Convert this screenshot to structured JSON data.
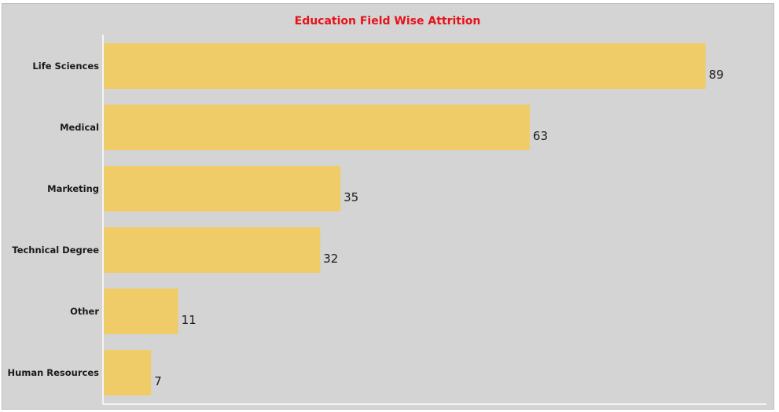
{
  "chart_data": {
    "type": "bar",
    "orientation": "horizontal",
    "title": "Education Field Wise Attrition",
    "categories": [
      "Life Sciences",
      "Medical",
      "Marketing",
      "Technical Degree",
      "Other",
      "Human Resources"
    ],
    "values": [
      89,
      63,
      35,
      32,
      11,
      7
    ],
    "xlim": [
      0,
      98
    ],
    "bar_color": "#f0cc68",
    "background_color": "#d4d4d4",
    "title_color": "#e8111a",
    "grid": false,
    "legend": "none"
  }
}
